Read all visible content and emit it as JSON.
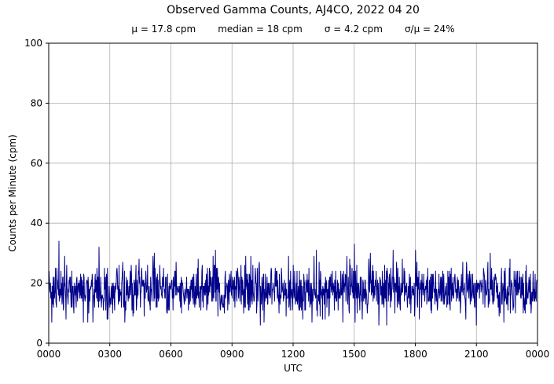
{
  "chart_data": {
    "type": "line",
    "title": "Observed Gamma Counts, AJ4CO, 2022 04 20",
    "xlabel": "UTC",
    "ylabel": "Counts per Minute (cpm)",
    "stats_labels": {
      "mean": "μ = 17.8 cpm",
      "median": "median = 18 cpm",
      "sigma": "σ = 4.2 cpm",
      "sigma_over_mean": "σ/μ = 24%"
    },
    "stats": {
      "mean_cpm": 17.8,
      "median_cpm": 18,
      "sigma_cpm": 4.2,
      "sigma_over_mean_pct": 24
    },
    "x_tick_labels": [
      "0000",
      "0300",
      "0600",
      "0900",
      "1200",
      "1500",
      "1800",
      "2100",
      "0000"
    ],
    "x_range_minutes": 1440,
    "y_ticks": [
      0,
      20,
      40,
      60,
      80,
      100
    ],
    "ylim": [
      0,
      100
    ],
    "grid": true,
    "legend": "none",
    "line_color": "#00008B",
    "grid_color": "#b0b0b0",
    "series": [
      {
        "name": "observed gamma counts",
        "n_points": 1440,
        "mean": 17.8,
        "sigma": 4.2,
        "min_observed": 6,
        "max_observed": 34,
        "seed": 20220420,
        "notable_peaks": [
          {
            "minute": 30,
            "value": 34
          },
          {
            "minute": 900,
            "value": 33
          },
          {
            "minute": 1080,
            "value": 31
          }
        ],
        "notable_lows": [
          {
            "minute": 130,
            "value": 7
          },
          {
            "minute": 995,
            "value": 6
          },
          {
            "minute": 1340,
            "value": 7
          }
        ]
      }
    ]
  }
}
